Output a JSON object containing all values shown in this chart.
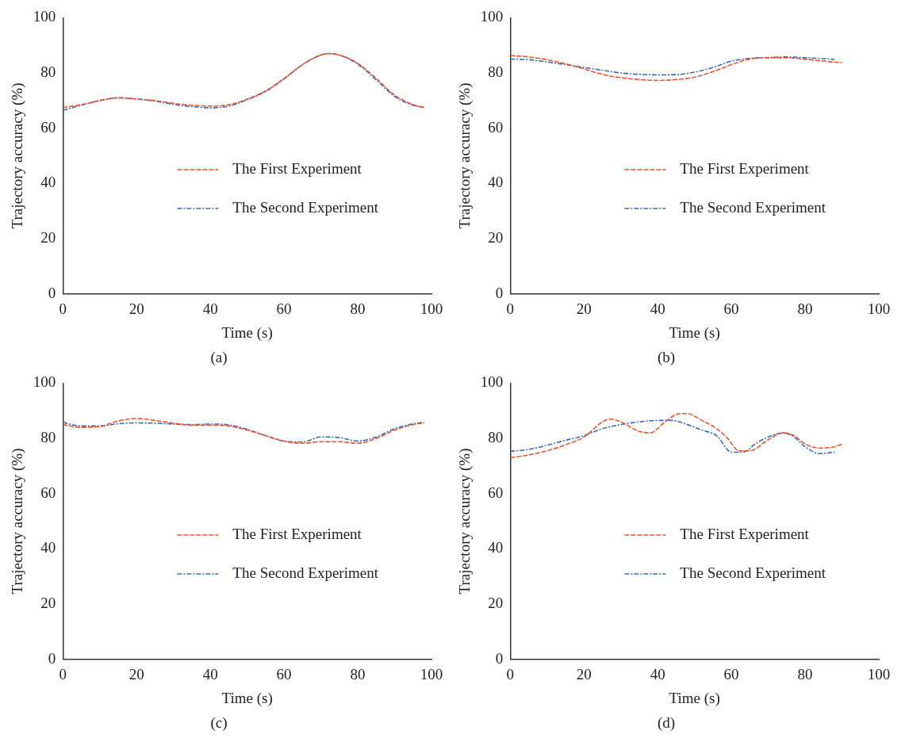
{
  "chart_data": [
    {
      "type": "line",
      "title": "(a)",
      "xlabel": "Time (s)",
      "ylabel": "Trajectory accuracy (%)",
      "xlim": [
        0,
        100
      ],
      "xticks": [
        0,
        20,
        40,
        60,
        80,
        100
      ],
      "ylim": [
        0,
        100
      ],
      "yticks": [
        0,
        20,
        40,
        60,
        80,
        100
      ],
      "grid": false,
      "legend": "center right",
      "marker": "none",
      "series": [
        {
          "name": "The First Experiment",
          "color": "#f4512c",
          "line_style": "dashed",
          "x": [
            0,
            5,
            10,
            15,
            20,
            25,
            30,
            35,
            40,
            45,
            50,
            55,
            60,
            65,
            70,
            72,
            75,
            80,
            85,
            90,
            95,
            98
          ],
          "values": [
            67.5,
            68.5,
            70,
            71,
            70.5,
            70,
            69,
            68.3,
            68,
            68.5,
            70.5,
            73.5,
            78,
            83,
            86.5,
            87,
            86.5,
            83.5,
            78,
            72,
            68.5,
            67.5
          ]
        },
        {
          "name": "The Second Experiment",
          "color": "#3a68c0",
          "line_style": "dashdot",
          "x": [
            0,
            5,
            10,
            15,
            20,
            25,
            30,
            35,
            40,
            45,
            50,
            55,
            60,
            65,
            70,
            72,
            75,
            80,
            85,
            90,
            95,
            98
          ],
          "values": [
            66.5,
            68.3,
            70,
            71,
            70.6,
            69.8,
            68.6,
            67.8,
            67.4,
            68,
            70.3,
            73.3,
            77.8,
            83,
            86.5,
            87,
            86.5,
            83.2,
            77.5,
            71.5,
            68.3,
            67.5
          ]
        }
      ]
    },
    {
      "type": "line",
      "title": "(b)",
      "xlabel": "Time (s)",
      "ylabel": "Trajectory accuracy (%)",
      "xlim": [
        0,
        100
      ],
      "xticks": [
        0,
        20,
        40,
        60,
        80,
        100
      ],
      "ylim": [
        0,
        100
      ],
      "yticks": [
        0,
        20,
        40,
        60,
        80,
        100
      ],
      "grid": false,
      "legend": "center right",
      "marker": "none",
      "series": [
        {
          "name": "The First Experiment",
          "color": "#f4512c",
          "line_style": "dashed",
          "x": [
            0,
            5,
            10,
            15,
            20,
            25,
            30,
            35,
            40,
            45,
            50,
            55,
            60,
            65,
            70,
            75,
            80,
            85,
            90
          ],
          "values": [
            86.3,
            85.8,
            84.8,
            83.3,
            81.5,
            79.5,
            78.3,
            77.6,
            77.3,
            77.6,
            78.5,
            80.5,
            83,
            85,
            85.5,
            85.5,
            85,
            84.3,
            83.7
          ]
        },
        {
          "name": "The Second Experiment",
          "color": "#3a68c0",
          "line_style": "dashdot",
          "x": [
            0,
            5,
            10,
            15,
            20,
            25,
            30,
            35,
            40,
            45,
            50,
            55,
            60,
            65,
            70,
            75,
            80,
            85,
            88
          ],
          "values": [
            85,
            84.8,
            84,
            83,
            82,
            81,
            80,
            79.5,
            79.3,
            79.4,
            80.3,
            82,
            84.3,
            85.3,
            85.6,
            85.8,
            85.5,
            85.2,
            84.9
          ]
        }
      ]
    },
    {
      "type": "line",
      "title": "(c)",
      "xlabel": "Time (s)",
      "ylabel": "Trajectory accuracy (%)",
      "xlim": [
        0,
        100
      ],
      "xticks": [
        0,
        20,
        40,
        60,
        80,
        100
      ],
      "ylim": [
        0,
        100
      ],
      "yticks": [
        0,
        20,
        40,
        60,
        80,
        100
      ],
      "grid": false,
      "legend": "center right",
      "marker": "none",
      "series": [
        {
          "name": "The First Experiment",
          "color": "#f4512c",
          "line_style": "dashed",
          "x": [
            0,
            5,
            10,
            15,
            20,
            25,
            30,
            35,
            40,
            45,
            50,
            55,
            60,
            65,
            70,
            75,
            80,
            85,
            90,
            95,
            98
          ],
          "values": [
            85,
            84,
            84.3,
            86.3,
            87.2,
            86.5,
            85.5,
            84.8,
            84.8,
            84.5,
            83,
            81,
            79,
            78.2,
            78.8,
            78.8,
            78.2,
            80,
            83,
            85,
            85.6
          ]
        },
        {
          "name": "The Second Experiment",
          "color": "#3a68c0",
          "line_style": "dashdot",
          "x": [
            0,
            5,
            10,
            15,
            20,
            25,
            30,
            35,
            40,
            45,
            50,
            55,
            60,
            65,
            70,
            75,
            80,
            85,
            90,
            95,
            98
          ],
          "values": [
            85.8,
            84.5,
            84.5,
            85.3,
            85.6,
            85.5,
            85.2,
            85,
            85.2,
            84.9,
            83.3,
            81,
            79,
            78.7,
            80.5,
            80.3,
            79,
            80.5,
            83.5,
            85.3,
            85.8
          ]
        }
      ]
    },
    {
      "type": "line",
      "title": "(d)",
      "xlabel": "Time (s)",
      "ylabel": "Trajectory accuracy (%)",
      "xlim": [
        0,
        100
      ],
      "xticks": [
        0,
        20,
        40,
        60,
        80,
        100
      ],
      "ylim": [
        0,
        100
      ],
      "yticks": [
        0,
        20,
        40,
        60,
        80,
        100
      ],
      "grid": false,
      "legend": "center right",
      "marker": "none",
      "series": [
        {
          "name": "The First Experiment",
          "color": "#f4512c",
          "line_style": "dashed",
          "x": [
            0,
            5,
            10,
            15,
            20,
            25,
            27,
            30,
            35,
            38,
            42,
            46,
            48,
            52,
            56,
            59,
            62,
            65,
            70,
            74,
            77,
            80,
            84,
            88,
            90
          ],
          "values": [
            73,
            74,
            75.5,
            77.7,
            80.5,
            86,
            87,
            86,
            82.5,
            82,
            86,
            89,
            89,
            86.5,
            83.5,
            80,
            75.5,
            75.5,
            79.5,
            82,
            81,
            78,
            76.5,
            77,
            78
          ]
        },
        {
          "name": "The Second Experiment",
          "color": "#3a68c0",
          "line_style": "dashdot",
          "x": [
            0,
            5,
            10,
            15,
            20,
            25,
            30,
            35,
            40,
            44,
            48,
            52,
            56,
            60,
            63,
            67,
            72,
            74,
            77,
            80,
            84,
            88
          ],
          "values": [
            75.3,
            76,
            77.5,
            79.3,
            81,
            83.5,
            85,
            86,
            86.5,
            86.5,
            85,
            83,
            81,
            75,
            75,
            78.5,
            81.5,
            82,
            80.5,
            77,
            74.5,
            75
          ]
        }
      ]
    }
  ]
}
